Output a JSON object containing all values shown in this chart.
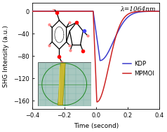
{
  "title": "",
  "xlabel": "Time (second)",
  "ylabel": "SHG Intensity (a.u.)",
  "xlim": [
    -0.4,
    0.4
  ],
  "ylim": [
    -175,
    15
  ],
  "yticks": [
    0,
    -40,
    -80,
    -120,
    -160
  ],
  "xticks": [
    -0.4,
    -0.2,
    0.0,
    0.2,
    0.4
  ],
  "lambda_label": "λ=1064nm",
  "kdp_color": "#3a3acc",
  "mpmoi_color": "#cc2222",
  "background_color": "#ffffff",
  "legend_kdp": "KDP",
  "legend_mpmoi": "MPMOI",
  "kdp_peak": -88,
  "mpmoi_peak": -162,
  "kdp_onset": -0.018,
  "mpmoi_onset": -0.018,
  "kdp_peak_t": 0.025,
  "mpmoi_peak_t": 0.005,
  "kdp_fall_sigma": 0.085,
  "mpmoi_fall_sigma": 0.075
}
